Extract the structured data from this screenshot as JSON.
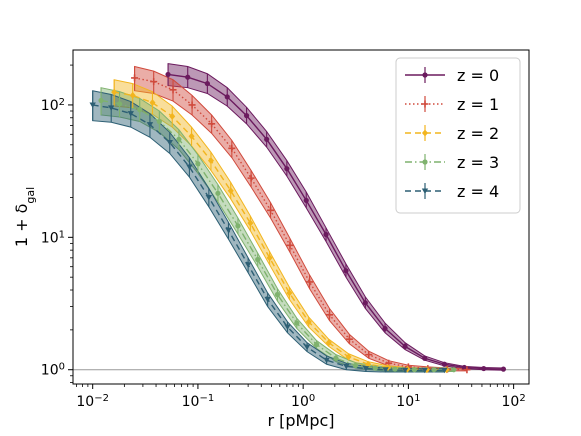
{
  "chart_data": {
    "type": "line",
    "xlabel": "r [pMpc]",
    "ylabel": "1 + δ_gal",
    "xscale": "log",
    "yscale": "log",
    "xlim": [
      0.0065,
      140
    ],
    "ylim": [
      0.78,
      260
    ],
    "x_ticks": [
      0.01,
      0.1,
      1,
      10,
      100
    ],
    "x_tick_labels": [
      [
        "10",
        "−2"
      ],
      [
        "10",
        "−1"
      ],
      [
        "10",
        "0"
      ],
      [
        "10",
        "1"
      ],
      [
        "10",
        "2"
      ]
    ],
    "y_ticks": [
      1,
      10,
      100
    ],
    "y_tick_labels": [
      [
        "10",
        "0"
      ],
      [
        "10",
        "1"
      ],
      [
        "10",
        "2"
      ]
    ],
    "reference_line_y": 1,
    "legend_position": "top-right",
    "series": [
      {
        "name": "z = 0",
        "color": "#6b1a5e",
        "linestyle": "solid",
        "marker": "circle",
        "x": [
          0.052,
          0.08,
          0.123,
          0.19,
          0.29,
          0.45,
          0.7,
          1.07,
          1.65,
          2.55,
          3.9,
          6.0,
          9.3,
          14.3,
          22,
          34,
          52,
          80
        ],
        "y": [
          170,
          162,
          145,
          115,
          83,
          55,
          33,
          19,
          10.5,
          5.6,
          3.2,
          2.05,
          1.5,
          1.22,
          1.1,
          1.04,
          1.02,
          1.01
        ],
        "band_lo": [
          140,
          135,
          122,
          98,
          72,
          48,
          29,
          16.7,
          9.3,
          5.0,
          2.9,
          1.9,
          1.42,
          1.18,
          1.07,
          1.02,
          1.0,
          0.99
        ],
        "band_hi": [
          205,
          195,
          172,
          135,
          96,
          63,
          38,
          22,
          11.8,
          6.3,
          3.55,
          2.25,
          1.6,
          1.27,
          1.13,
          1.06,
          1.04,
          1.03
        ]
      },
      {
        "name": "z = 1",
        "color": "#d04a3c",
        "linestyle": "dotted",
        "marker": "plus",
        "x": [
          0.025,
          0.038,
          0.058,
          0.088,
          0.135,
          0.21,
          0.32,
          0.49,
          0.75,
          1.15,
          1.78,
          2.75,
          4.2,
          6.5,
          10,
          15.3,
          23.5,
          36
        ],
        "y": [
          160,
          150,
          130,
          100,
          72,
          47,
          28,
          16,
          8.7,
          4.6,
          2.6,
          1.7,
          1.3,
          1.12,
          1.05,
          1.02,
          1.01,
          1.0
        ],
        "band_lo": [
          128,
          122,
          107,
          84,
          61,
          40,
          24,
          14,
          7.7,
          4.1,
          2.35,
          1.57,
          1.22,
          1.07,
          1.01,
          0.99,
          0.98,
          0.98
        ],
        "band_hi": [
          195,
          180,
          155,
          118,
          84,
          54,
          32,
          18.3,
          9.8,
          5.2,
          2.9,
          1.85,
          1.38,
          1.17,
          1.08,
          1.05,
          1.03,
          1.02
        ]
      },
      {
        "name": "z = 2",
        "color": "#f2b51f",
        "linestyle": "dashed",
        "marker": "diamond",
        "x": [
          0.016,
          0.024,
          0.037,
          0.057,
          0.087,
          0.133,
          0.205,
          0.315,
          0.48,
          0.74,
          1.13,
          1.75,
          2.7,
          4.15,
          6.4,
          9.8,
          15,
          23
        ],
        "y": [
          125,
          118,
          104,
          82,
          58,
          38,
          22.5,
          12.8,
          7.0,
          3.8,
          2.3,
          1.6,
          1.25,
          1.1,
          1.04,
          1.01,
          1.0,
          1.0
        ],
        "band_lo": [
          98,
          95,
          85,
          68,
          49,
          32,
          19.5,
          11.2,
          6.2,
          3.4,
          2.1,
          1.5,
          1.18,
          1.05,
          1.0,
          0.98,
          0.97,
          0.97
        ],
        "band_hi": [
          155,
          145,
          126,
          98,
          68,
          44,
          26,
          14.5,
          7.8,
          4.2,
          2.5,
          1.7,
          1.32,
          1.15,
          1.07,
          1.04,
          1.03,
          1.03
        ]
      },
      {
        "name": "z = 3",
        "color": "#7fb26e",
        "linestyle": "dashdot",
        "marker": "circle",
        "x": [
          0.012,
          0.018,
          0.028,
          0.043,
          0.066,
          0.1,
          0.155,
          0.24,
          0.37,
          0.57,
          0.87,
          1.34,
          2.05,
          3.15,
          4.85,
          7.45,
          11.4,
          17.5,
          27
        ],
        "y": [
          108,
          102,
          92,
          75,
          55,
          36,
          21.5,
          12.2,
          6.8,
          3.7,
          2.25,
          1.55,
          1.22,
          1.08,
          1.03,
          1.01,
          1.0,
          1.0,
          1.0
        ],
        "band_lo": [
          84,
          81,
          75,
          62,
          46,
          30.5,
          18.5,
          10.6,
          6.0,
          3.3,
          2.05,
          1.45,
          1.15,
          1.03,
          0.99,
          0.97,
          0.97,
          0.97,
          0.97
        ],
        "band_hi": [
          135,
          126,
          112,
          90,
          65,
          42,
          25,
          14,
          7.6,
          4.1,
          2.45,
          1.66,
          1.3,
          1.13,
          1.07,
          1.04,
          1.03,
          1.03,
          1.03
        ]
      },
      {
        "name": "z = 4",
        "color": "#2d5f74",
        "linestyle": "dashed",
        "marker": "triangle",
        "x": [
          0.01,
          0.015,
          0.023,
          0.035,
          0.054,
          0.083,
          0.127,
          0.195,
          0.3,
          0.46,
          0.71,
          1.09,
          1.67,
          2.57,
          3.95,
          6.07,
          9.3,
          14.3,
          22
        ],
        "y": [
          100,
          95,
          86,
          71,
          52,
          34,
          20,
          11.3,
          6.2,
          3.4,
          2.1,
          1.48,
          1.18,
          1.06,
          1.02,
          1.0,
          0.99,
          0.99,
          0.99
        ],
        "band_lo": [
          76,
          74,
          68,
          57,
          43,
          28.5,
          17,
          9.7,
          5.4,
          3.0,
          1.9,
          1.37,
          1.1,
          1.0,
          0.97,
          0.96,
          0.96,
          0.96,
          0.96
        ],
        "band_hi": [
          128,
          120,
          106,
          86,
          62,
          40,
          23.5,
          13.0,
          7.0,
          3.8,
          2.3,
          1.6,
          1.27,
          1.12,
          1.06,
          1.03,
          1.02,
          1.02,
          1.02
        ]
      }
    ]
  }
}
